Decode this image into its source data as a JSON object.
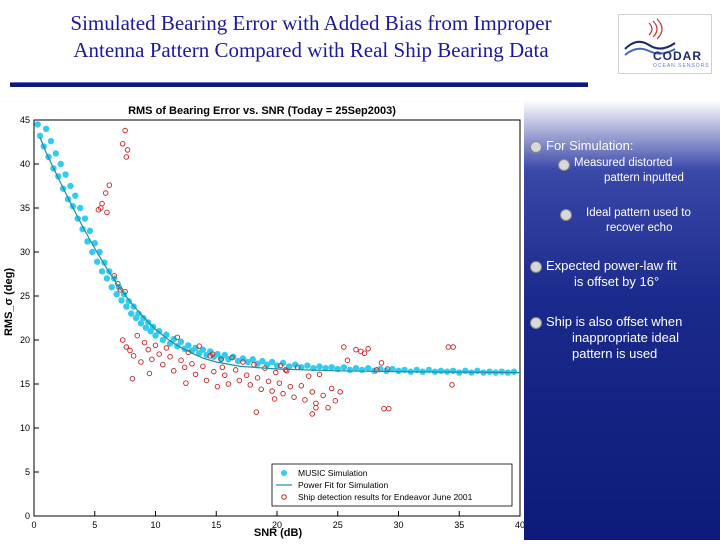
{
  "slide": {
    "title_line1": "Simulated Bearing Error with Added Bias from Improper",
    "title_line2": "Antenna Pattern Compared with Real Ship Bearing Data",
    "logo_text": "CODAR",
    "logo_sub": "OCEAN SENSORS"
  },
  "notes": {
    "n1": "For Simulation:",
    "n1a_l1": "Measured distorted",
    "n1a_l2": "pattern inputted",
    "n1b_l1": "Ideal pattern used to",
    "n1b_l2": "recover echo",
    "n2_l1": "Expected power-law fit",
    "n2_l2": "is offset by 16°",
    "n3_l1": "Ship is also offset when",
    "n3_l2": "inappropriate ideal",
    "n3_l3": "pattern is used"
  },
  "chart_data": {
    "type": "scatter",
    "title": "RMS of Bearing Error vs. SNR (Today = 25Sep2003)",
    "xlabel": "SNR (dB)",
    "ylabel": "RMS_σ (deg)",
    "xlim": [
      0,
      40
    ],
    "ylim": [
      0,
      45
    ],
    "xticks": [
      0,
      5,
      10,
      15,
      20,
      25,
      30,
      35,
      40
    ],
    "yticks": [
      0,
      5,
      10,
      15,
      20,
      25,
      30,
      35,
      40,
      45
    ],
    "legend_position": "bottom-right",
    "colors": {
      "sim": "#33ccee",
      "fit": "#1a8fa8",
      "ship": "#cc2222"
    },
    "series": [
      {
        "name": "MUSIC Simulation",
        "kind": "points",
        "points": [
          [
            0.3,
            44.5
          ],
          [
            0.5,
            43.2
          ],
          [
            0.8,
            42.0
          ],
          [
            1.0,
            44.0
          ],
          [
            1.2,
            40.8
          ],
          [
            1.4,
            42.6
          ],
          [
            1.6,
            39.5
          ],
          [
            1.8,
            41.2
          ],
          [
            2.0,
            38.6
          ],
          [
            2.2,
            40.0
          ],
          [
            2.4,
            37.2
          ],
          [
            2.6,
            38.8
          ],
          [
            2.8,
            36.0
          ],
          [
            3.0,
            37.5
          ],
          [
            3.2,
            35.2
          ],
          [
            3.4,
            36.4
          ],
          [
            3.6,
            33.8
          ],
          [
            3.8,
            35.0
          ],
          [
            4.0,
            32.6
          ],
          [
            4.2,
            33.8
          ],
          [
            4.4,
            31.2
          ],
          [
            4.6,
            32.4
          ],
          [
            4.8,
            30.0
          ],
          [
            5.0,
            31.0
          ],
          [
            5.2,
            28.9
          ],
          [
            5.4,
            30.0
          ],
          [
            5.6,
            27.8
          ],
          [
            5.8,
            28.8
          ],
          [
            6.0,
            27.0
          ],
          [
            6.2,
            27.8
          ],
          [
            6.4,
            26.0
          ],
          [
            6.6,
            27.0
          ],
          [
            6.8,
            25.2
          ],
          [
            7.0,
            26.0
          ],
          [
            7.2,
            24.5
          ],
          [
            7.4,
            25.2
          ],
          [
            7.6,
            23.8
          ],
          [
            7.8,
            24.4
          ],
          [
            8.0,
            23.0
          ],
          [
            8.2,
            23.8
          ],
          [
            8.4,
            22.5
          ],
          [
            8.6,
            23.0
          ],
          [
            8.8,
            21.9
          ],
          [
            9.0,
            22.5
          ],
          [
            9.2,
            21.4
          ],
          [
            9.4,
            22.0
          ],
          [
            9.6,
            21.0
          ],
          [
            9.8,
            21.5
          ],
          [
            10.0,
            20.5
          ],
          [
            10.3,
            21.0
          ],
          [
            10.6,
            20.0
          ],
          [
            10.9,
            20.6
          ],
          [
            11.2,
            19.6
          ],
          [
            11.5,
            20.1
          ],
          [
            11.8,
            19.3
          ],
          [
            12.1,
            19.8
          ],
          [
            12.4,
            19.0
          ],
          [
            12.7,
            19.4
          ],
          [
            13.0,
            18.8
          ],
          [
            13.3,
            19.1
          ],
          [
            13.6,
            18.5
          ],
          [
            13.9,
            18.9
          ],
          [
            14.2,
            18.3
          ],
          [
            14.5,
            18.7
          ],
          [
            14.8,
            18.1
          ],
          [
            15.1,
            18.4
          ],
          [
            15.4,
            17.9
          ],
          [
            15.7,
            18.3
          ],
          [
            16.0,
            17.8
          ],
          [
            16.4,
            18.1
          ],
          [
            16.8,
            17.6
          ],
          [
            17.2,
            17.9
          ],
          [
            17.6,
            17.5
          ],
          [
            18.0,
            17.8
          ],
          [
            18.4,
            17.3
          ],
          [
            18.8,
            17.6
          ],
          [
            19.2,
            17.2
          ],
          [
            19.6,
            17.5
          ],
          [
            20.0,
            17.1
          ],
          [
            20.5,
            17.4
          ],
          [
            21.0,
            17.0
          ],
          [
            21.5,
            17.2
          ],
          [
            22.0,
            16.9
          ],
          [
            22.5,
            17.1
          ],
          [
            23.0,
            16.8
          ],
          [
            23.5,
            17.0
          ],
          [
            24.0,
            16.8
          ],
          [
            24.5,
            16.9
          ],
          [
            25.0,
            16.7
          ],
          [
            25.5,
            16.9
          ],
          [
            26.0,
            16.6
          ],
          [
            26.5,
            16.8
          ],
          [
            27.0,
            16.6
          ],
          [
            27.5,
            16.8
          ],
          [
            28.0,
            16.5
          ],
          [
            28.5,
            16.7
          ],
          [
            29.0,
            16.5
          ],
          [
            29.5,
            16.7
          ],
          [
            30.0,
            16.5
          ],
          [
            30.5,
            16.6
          ],
          [
            31.0,
            16.4
          ],
          [
            31.5,
            16.6
          ],
          [
            32.0,
            16.4
          ],
          [
            32.5,
            16.6
          ],
          [
            33.0,
            16.4
          ],
          [
            33.5,
            16.5
          ],
          [
            34.0,
            16.4
          ],
          [
            34.5,
            16.5
          ],
          [
            35.0,
            16.3
          ],
          [
            35.5,
            16.5
          ],
          [
            36.0,
            16.3
          ],
          [
            36.5,
            16.5
          ],
          [
            37.0,
            16.3
          ],
          [
            37.5,
            16.4
          ],
          [
            38.0,
            16.3
          ],
          [
            38.5,
            16.4
          ],
          [
            39.0,
            16.3
          ],
          [
            39.5,
            16.4
          ]
        ]
      },
      {
        "name": "Power Fit for Simulation",
        "kind": "line",
        "points": [
          [
            0.5,
            43.0
          ],
          [
            1,
            41.3
          ],
          [
            2,
            38.4
          ],
          [
            3,
            35.6
          ],
          [
            4,
            32.9
          ],
          [
            5,
            30.4
          ],
          [
            6,
            28.1
          ],
          [
            7,
            26.0
          ],
          [
            8,
            24.2
          ],
          [
            9,
            22.6
          ],
          [
            10,
            21.2
          ],
          [
            11,
            20.1
          ],
          [
            12,
            19.2
          ],
          [
            13,
            18.5
          ],
          [
            14,
            17.9
          ],
          [
            15,
            17.5
          ],
          [
            17,
            17.0
          ],
          [
            20,
            16.7
          ],
          [
            25,
            16.5
          ],
          [
            30,
            16.4
          ],
          [
            35,
            16.35
          ],
          [
            40,
            16.3
          ]
        ]
      },
      {
        "name": "Ship detection results for Endeavor June 2001",
        "kind": "points",
        "points": [
          [
            7.3,
            20.0
          ],
          [
            7.6,
            19.2
          ],
          [
            7.9,
            18.8
          ],
          [
            8.2,
            18.2
          ],
          [
            8.5,
            20.5
          ],
          [
            8.8,
            17.5
          ],
          [
            9.1,
            19.7
          ],
          [
            9.4,
            18.9
          ],
          [
            9.7,
            17.8
          ],
          [
            10.0,
            19.4
          ],
          [
            10.3,
            18.4
          ],
          [
            10.6,
            17.2
          ],
          [
            10.9,
            19.1
          ],
          [
            11.2,
            18.1
          ],
          [
            11.5,
            16.5
          ],
          [
            11.8,
            20.3
          ],
          [
            12.1,
            17.7
          ],
          [
            12.4,
            16.9
          ],
          [
            12.7,
            18.6
          ],
          [
            13.0,
            17.3
          ],
          [
            13.3,
            16.1
          ],
          [
            13.6,
            19.3
          ],
          [
            13.9,
            17.0
          ],
          [
            14.2,
            15.4
          ],
          [
            14.5,
            18.2
          ],
          [
            14.8,
            16.4
          ],
          [
            15.1,
            14.7
          ],
          [
            15.4,
            17.8
          ],
          [
            15.7,
            16.0
          ],
          [
            16.0,
            15.0
          ],
          [
            16.3,
            18.0
          ],
          [
            16.6,
            16.6
          ],
          [
            16.9,
            15.4
          ],
          [
            17.2,
            17.5
          ],
          [
            17.5,
            16.0
          ],
          [
            17.8,
            14.9
          ],
          [
            18.1,
            17.2
          ],
          [
            18.4,
            15.7
          ],
          [
            18.7,
            14.4
          ],
          [
            19.0,
            16.8
          ],
          [
            19.3,
            15.3
          ],
          [
            19.6,
            14.2
          ],
          [
            19.9,
            16.3
          ],
          [
            20.2,
            15.1
          ],
          [
            20.5,
            13.9
          ],
          [
            20.8,
            16.5
          ],
          [
            21.1,
            14.7
          ],
          [
            21.4,
            13.5
          ],
          [
            21.7,
            16.9
          ],
          [
            22.0,
            14.8
          ],
          [
            22.3,
            13.2
          ],
          [
            22.6,
            15.9
          ],
          [
            22.9,
            14.1
          ],
          [
            23.2,
            12.8
          ],
          [
            23.5,
            16.1
          ],
          [
            23.8,
            13.7
          ],
          [
            24.2,
            12.3
          ],
          [
            24.5,
            14.5
          ],
          [
            24.8,
            13.1
          ],
          [
            25.2,
            14.1
          ],
          [
            5.3,
            34.8
          ],
          [
            5.6,
            35.5
          ],
          [
            5.9,
            36.7
          ],
          [
            6.2,
            37.6
          ],
          [
            5.5,
            35.0
          ],
          [
            6.0,
            34.5
          ],
          [
            7.3,
            42.3
          ],
          [
            7.5,
            43.8
          ],
          [
            7.7,
            41.6
          ],
          [
            7.6,
            40.8
          ],
          [
            6.6,
            27.3
          ],
          [
            6.9,
            26.4
          ],
          [
            7.1,
            25.7
          ],
          [
            7.5,
            25.5
          ],
          [
            8.1,
            15.6
          ],
          [
            9.5,
            16.2
          ],
          [
            12.5,
            15.1
          ],
          [
            18.3,
            11.8
          ],
          [
            19.8,
            13.3
          ],
          [
            22.9,
            11.6
          ],
          [
            23.2,
            12.3
          ],
          [
            25.5,
            19.2
          ],
          [
            25.8,
            17.7
          ],
          [
            26.5,
            18.9
          ],
          [
            26.9,
            18.7
          ],
          [
            27.2,
            18.5
          ],
          [
            27.5,
            19.0
          ],
          [
            28.2,
            16.6
          ],
          [
            28.6,
            17.4
          ],
          [
            29.1,
            16.7
          ],
          [
            34.1,
            19.2
          ],
          [
            34.5,
            19.2
          ],
          [
            34.4,
            14.9
          ],
          [
            28.8,
            12.2
          ],
          [
            29.2,
            12.2
          ],
          [
            20.7,
            16.6
          ],
          [
            20.3,
            17.1
          ],
          [
            15.5,
            16.9
          ],
          [
            14.7,
            18.4
          ]
        ]
      }
    ]
  }
}
